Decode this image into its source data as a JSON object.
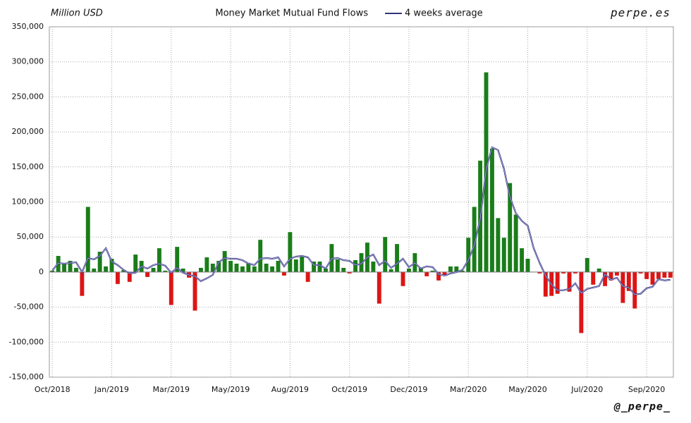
{
  "chart_data": {
    "type": "bar",
    "title": "Money Market Mutual Fund Flows",
    "y_label": "Million USD",
    "watermark": "perpe.es",
    "credit": "@_perpe_",
    "positive_color": "#1a7d1a",
    "negative_color": "#dd1515",
    "grid": true,
    "categories": [
      "Oct/2018",
      null,
      null,
      null,
      null,
      null,
      null,
      null,
      null,
      null,
      "Jan/2019",
      null,
      null,
      null,
      null,
      null,
      null,
      null,
      null,
      null,
      "Mar/2019",
      null,
      null,
      null,
      null,
      null,
      null,
      null,
      null,
      null,
      "May/2019",
      null,
      null,
      null,
      null,
      null,
      null,
      null,
      null,
      null,
      "Aug/2019",
      null,
      null,
      null,
      null,
      null,
      null,
      null,
      null,
      null,
      "Oct/2019",
      null,
      null,
      null,
      null,
      null,
      null,
      null,
      null,
      null,
      "Dec/2019",
      null,
      null,
      null,
      null,
      null,
      null,
      null,
      null,
      null,
      "Mar/2020",
      null,
      null,
      null,
      null,
      null,
      null,
      null,
      null,
      null,
      "May/2020",
      null,
      null,
      null,
      null,
      null,
      null,
      null,
      null,
      null,
      "Jul/2020",
      null,
      null,
      null,
      null,
      null,
      null,
      null,
      null,
      null,
      "Sep/2020",
      null,
      null,
      null,
      null
    ],
    "values": [
      2000,
      23000,
      12000,
      16000,
      6000,
      -34000,
      93000,
      5000,
      29000,
      8000,
      19000,
      -17000,
      3000,
      -14000,
      25000,
      16000,
      -7000,
      6000,
      34000,
      2000,
      -47000,
      36000,
      5000,
      -8000,
      -55000,
      6000,
      21000,
      12000,
      16000,
      30000,
      16000,
      12000,
      8000,
      13000,
      8000,
      46000,
      12000,
      8000,
      16000,
      -5000,
      57000,
      18000,
      22000,
      -14000,
      15000,
      15000,
      5000,
      40000,
      18000,
      6000,
      -2000,
      17000,
      27000,
      42000,
      15000,
      -45000,
      50000,
      4000,
      40000,
      -20000,
      5000,
      27000,
      6000,
      -6000,
      2000,
      -12000,
      -5000,
      8000,
      8000,
      2000,
      49000,
      93000,
      159000,
      285000,
      176000,
      77000,
      49000,
      127000,
      82000,
      34000,
      19000,
      0,
      -2000,
      -35000,
      -34000,
      -31000,
      -2000,
      -28000,
      -2000,
      -87000,
      20000,
      -18000,
      5000,
      -20000,
      -12000,
      -5000,
      -44000,
      -27000,
      -52000,
      -2000,
      -10000,
      -18000,
      -10000,
      -8000,
      -8000
    ],
    "series": [
      {
        "name": "4 weeks average",
        "color": "#33337f",
        "values": [
          2000,
          13000,
          12000,
          13000,
          14000,
          0,
          20000,
          18000,
          23000,
          34000,
          15000,
          10000,
          3000,
          -2000,
          -1000,
          8000,
          5000,
          10000,
          12000,
          9000,
          -1000,
          6000,
          -1000,
          -4000,
          -6000,
          -13000,
          -9000,
          -4000,
          14000,
          20000,
          19000,
          19000,
          17000,
          12000,
          10000,
          19000,
          20000,
          19000,
          21000,
          8000,
          19000,
          22000,
          23000,
          21000,
          10000,
          10000,
          5000,
          19000,
          20000,
          17000,
          16000,
          10000,
          12000,
          21000,
          25000,
          10000,
          16000,
          6000,
          12000,
          19000,
          7000,
          13000,
          5000,
          8000,
          7000,
          -3000,
          -5000,
          -2000,
          0,
          3000,
          17000,
          38000,
          76000,
          147000,
          178000,
          174000,
          147000,
          107000,
          84000,
          73000,
          66000,
          34000,
          13000,
          -5000,
          -18000,
          -26000,
          -26000,
          -24000,
          -16000,
          -30000,
          -24000,
          -22000,
          -20000,
          -3000,
          -11000,
          -8000,
          -20000,
          -22000,
          -32000,
          -31000,
          -23000,
          -21000,
          -10000,
          -12000,
          -11000
        ]
      }
    ],
    "ylim": [
      -150000,
      350000
    ],
    "yticks": [
      {
        "value": -150000,
        "label": "-150,000"
      },
      {
        "value": -100000,
        "label": "-100,000"
      },
      {
        "value": -50000,
        "label": "-50,000"
      },
      0,
      {
        "value": 50000,
        "label": "50,000"
      },
      {
        "value": 100000,
        "label": "100,000"
      },
      {
        "value": 150000,
        "label": "150,000"
      },
      {
        "value": 200000,
        "label": "200,000"
      },
      {
        "value": 250000,
        "label": "250,000"
      },
      {
        "value": 300000,
        "label": "300,000"
      },
      {
        "value": 350000,
        "label": "350,000"
      }
    ]
  }
}
